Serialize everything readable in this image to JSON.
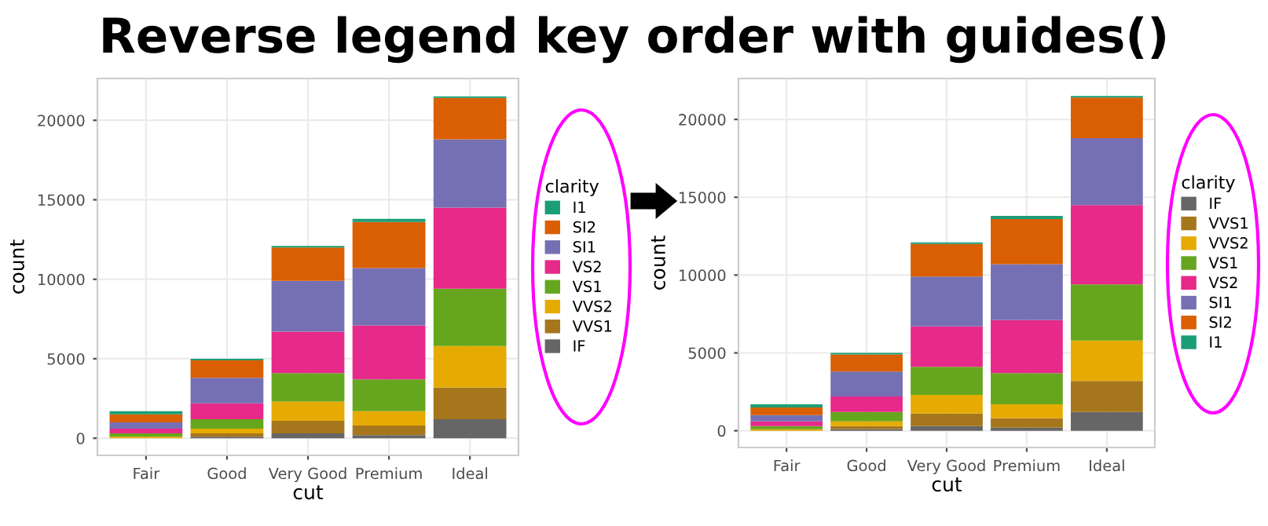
{
  "chart_data": [
    {
      "type": "bar",
      "title": "Reverse legend key order with guides()",
      "xlabel": "cut",
      "ylabel": "count",
      "legend_title": "clarity",
      "legend": "right",
      "stacked": true,
      "grid": true,
      "categories": [
        "Fair",
        "Good",
        "Very Good",
        "Premium",
        "Ideal"
      ],
      "ylim": [
        -1077,
        22628
      ],
      "yticks": [
        0,
        5000,
        10000,
        15000,
        20000
      ],
      "series": [
        {
          "name": "IF",
          "color": "#666666",
          "values": [
            0,
            100,
            300,
            200,
            1200
          ]
        },
        {
          "name": "VVS1",
          "color": "#a6761d",
          "values": [
            0,
            200,
            800,
            600,
            2000
          ]
        },
        {
          "name": "VVS2",
          "color": "#e6ab02",
          "values": [
            100,
            300,
            1200,
            900,
            2600
          ]
        },
        {
          "name": "VS1",
          "color": "#66a61e",
          "values": [
            200,
            600,
            1800,
            2000,
            3600
          ]
        },
        {
          "name": "VS2",
          "color": "#e7298a",
          "values": [
            300,
            1000,
            2600,
            3400,
            5100
          ]
        },
        {
          "name": "SI1",
          "color": "#7570b3",
          "values": [
            400,
            1600,
            3200,
            3600,
            4300
          ]
        },
        {
          "name": "SI2",
          "color": "#d95f02",
          "values": [
            500,
            1100,
            2100,
            2900,
            2600
          ]
        },
        {
          "name": "I1",
          "color": "#1b9e77",
          "values": [
            200,
            100,
            100,
            200,
            100
          ]
        }
      ]
    },
    {
      "type": "bar",
      "xlabel": "cut",
      "ylabel": "count",
      "legend_title": "clarity",
      "legend": "right",
      "stacked": true,
      "grid": true,
      "categories": [
        "Fair",
        "Good",
        "Very Good",
        "Premium",
        "Ideal"
      ],
      "ylim": [
        -1077,
        22628
      ],
      "yticks": [
        0,
        5000,
        10000,
        15000,
        20000
      ],
      "series": [
        {
          "name": "IF",
          "color": "#666666",
          "values": [
            0,
            100,
            300,
            200,
            1200
          ]
        },
        {
          "name": "VVS1",
          "color": "#a6761d",
          "values": [
            0,
            200,
            800,
            600,
            2000
          ]
        },
        {
          "name": "VVS2",
          "color": "#e6ab02",
          "values": [
            100,
            300,
            1200,
            900,
            2600
          ]
        },
        {
          "name": "VS1",
          "color": "#66a61e",
          "values": [
            200,
            600,
            1800,
            2000,
            3600
          ]
        },
        {
          "name": "VS2",
          "color": "#e7298a",
          "values": [
            300,
            1000,
            2600,
            3400,
            5100
          ]
        },
        {
          "name": "SI1",
          "color": "#7570b3",
          "values": [
            400,
            1600,
            3200,
            3600,
            4300
          ]
        },
        {
          "name": "SI2",
          "color": "#d95f02",
          "values": [
            500,
            1100,
            2100,
            2900,
            2600
          ]
        },
        {
          "name": "I1",
          "color": "#1b9e77",
          "values": [
            200,
            100,
            100,
            200,
            100
          ]
        }
      ]
    }
  ]
}
